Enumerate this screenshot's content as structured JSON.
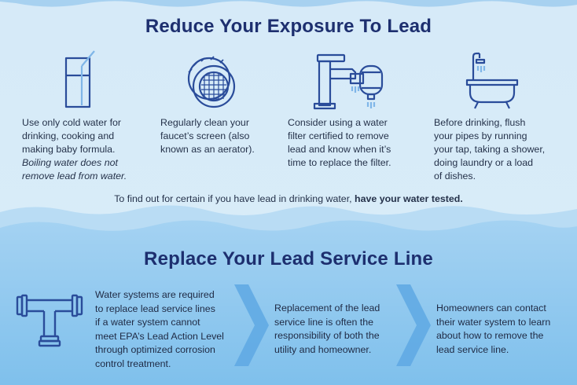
{
  "colors": {
    "top_bg": "#d7ecf8",
    "wave_light": "#a9d3f0",
    "wave_mid": "#7cbde8",
    "bottom_bg": "#8ac7ee",
    "title": "#1d2f6f",
    "icon": "#2a4c9a"
  },
  "exposure": {
    "title": "Reduce Your Exposure To Lead",
    "tips": [
      {
        "icon": "glass-icon",
        "lines": [
          "Use only cold water for",
          "drinking, cooking and",
          "making baby formula."
        ],
        "italic_lines": [
          "Boiling water does not",
          "remove lead from water."
        ]
      },
      {
        "icon": "aerator-icon",
        "lines": [
          "Regularly clean your",
          "faucet’s screen (also",
          "known as an aerator)."
        ]
      },
      {
        "icon": "faucet-filter-icon",
        "lines": [
          "Consider using a water",
          "filter certified to remove",
          "lead and know when it’s",
          "time to replace the filter."
        ]
      },
      {
        "icon": "bathtub-icon",
        "lines": [
          "Before drinking, flush",
          "your pipes by running",
          "your tap, taking a shower,",
          "doing laundry or a load",
          "of dishes."
        ]
      }
    ],
    "note_text": "To find out for certain if you have lead in drinking water, ",
    "note_bold": "have your water tested."
  },
  "service_line": {
    "title": "Replace Your Lead Service Line",
    "icon": "pipe-fitting-icon",
    "steps": [
      {
        "lines": [
          "Water systems are required",
          "to replace lead service lines",
          "if a water system cannot",
          "meet EPA’s Lead Action Level",
          "through optimized corrosion",
          "control treatment."
        ]
      },
      {
        "lines": [
          "Replacement of the lead",
          "service line is often the",
          "responsibility of both the",
          "utility and homeowner."
        ]
      },
      {
        "lines": [
          "Homeowners can contact",
          "their water system to learn",
          "about how to remove the",
          "lead service line."
        ]
      }
    ]
  }
}
